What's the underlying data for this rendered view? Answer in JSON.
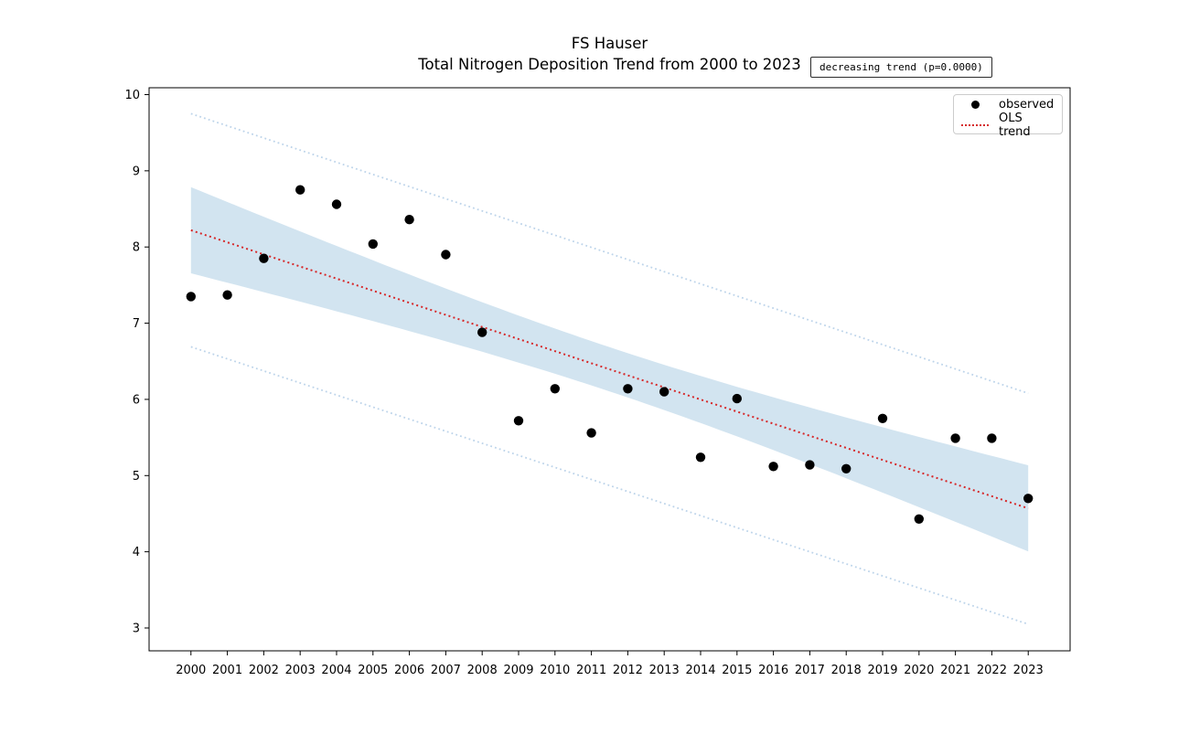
{
  "figure": {
    "title_line1": "FS Hauser",
    "title_line2": "Total Nitrogen Deposition Trend from 2000 to 2023",
    "annotation": "decreasing trend (p=0.0000)",
    "background": "#ffffff"
  },
  "legend": {
    "position": "upper right",
    "items": [
      {
        "label": "observed",
        "marker": "dot",
        "color": "#000000"
      },
      {
        "label": "OLS trend",
        "marker": "dotted-line",
        "color": "#d62728"
      }
    ]
  },
  "chart_data": {
    "type": "scatter",
    "title": "FS Hauser\nTotal Nitrogen Deposition Trend from 2000 to 2023",
    "xlabel": "",
    "ylabel": "",
    "grid": false,
    "legend_position": "upper right",
    "annotation": "decreasing trend (p=0.0000)",
    "xlim": [
      1998.85,
      2024.15
    ],
    "ylim": [
      2.7,
      10.09
    ],
    "x_ticks": [
      2000,
      2001,
      2002,
      2003,
      2004,
      2005,
      2006,
      2007,
      2008,
      2009,
      2010,
      2011,
      2012,
      2013,
      2014,
      2015,
      2016,
      2017,
      2018,
      2019,
      2020,
      2021,
      2022,
      2023
    ],
    "y_ticks": [
      3,
      4,
      5,
      6,
      7,
      8,
      9,
      10
    ],
    "series": [
      {
        "name": "observed",
        "type": "scatter",
        "color": "#000000",
        "x": [
          2000,
          2001,
          2002,
          2003,
          2004,
          2005,
          2006,
          2007,
          2008,
          2009,
          2010,
          2011,
          2012,
          2013,
          2014,
          2015,
          2016,
          2017,
          2018,
          2019,
          2020,
          2021,
          2022,
          2023
        ],
        "y": [
          7.35,
          7.37,
          7.85,
          8.75,
          8.56,
          8.04,
          8.36,
          7.9,
          6.88,
          5.72,
          6.14,
          5.56,
          6.14,
          6.1,
          5.24,
          6.01,
          5.12,
          5.14,
          5.09,
          5.75,
          4.43,
          5.49,
          5.49,
          4.7
        ]
      },
      {
        "name": "OLS trend",
        "type": "line",
        "style": "dotted",
        "color": "#d62728",
        "x": [
          2000,
          2023
        ],
        "y": [
          8.22,
          4.57
        ]
      }
    ],
    "confidence_band": {
      "color": "#d2e4f0",
      "x_range": [
        2000,
        2023
      ],
      "center_year": 2011.5,
      "half_width_mid": 0.29,
      "half_width_end": 0.565
    },
    "prediction_interval": {
      "color": "#bdd4ea",
      "style": "dotted",
      "upper": {
        "x": [
          2000,
          2023
        ],
        "y": [
          9.75,
          6.08
        ]
      },
      "lower": {
        "x": [
          2000,
          2023
        ],
        "y": [
          6.69,
          3.05
        ]
      }
    }
  }
}
